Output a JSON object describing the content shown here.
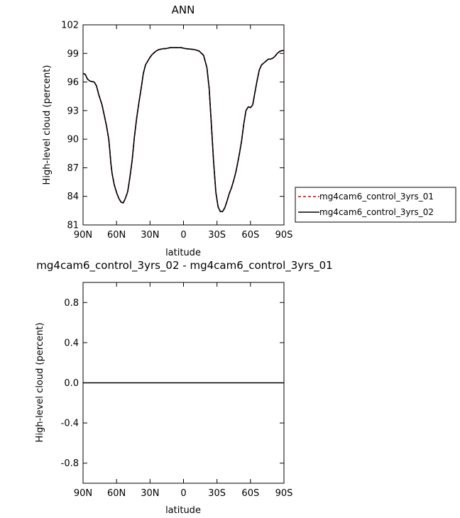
{
  "chart_data": [
    {
      "type": "line",
      "title": "ANN",
      "xlabel": "latitude",
      "ylabel": "High-level cloud (percent)",
      "xlim": [
        90,
        -90
      ],
      "ylim": [
        81,
        102
      ],
      "x_ticks": [
        90,
        60,
        30,
        0,
        -30,
        -60,
        -90
      ],
      "x_tick_labels": [
        "90N",
        "60N",
        "30N",
        "0",
        "30S",
        "60S",
        "90S"
      ],
      "y_ticks": [
        81,
        84,
        87,
        90,
        93,
        96,
        99,
        102
      ],
      "y_tick_labels": [
        "81",
        "84",
        "87",
        "90",
        "93",
        "96",
        "99",
        "102"
      ],
      "legend_position": "right",
      "series": [
        {
          "name": "mg4cam6_control_3yrs_01",
          "color": "#cc0000",
          "dash": "dashed",
          "x": [
            90,
            88,
            86,
            84,
            80,
            78,
            76,
            73,
            71,
            69,
            67,
            66,
            65,
            64,
            62,
            60,
            58,
            56,
            54,
            52,
            50,
            48,
            46,
            44,
            42,
            40,
            38,
            36,
            34,
            32,
            30,
            28,
            26,
            24,
            22,
            20,
            18,
            16,
            14,
            12,
            10,
            6,
            2,
            -2,
            -6,
            -10,
            -14,
            -18,
            -21,
            -23,
            -25,
            -27,
            -29,
            -31,
            -33,
            -35,
            -37,
            -39,
            -41,
            -43,
            -45,
            -47,
            -48,
            -50,
            -52,
            -54,
            -56,
            -58,
            -60,
            -62,
            -64,
            -66,
            -68,
            -70,
            -72,
            -74,
            -76,
            -78,
            -80,
            -82,
            -84,
            -86,
            -88,
            -90
          ],
          "y": [
            96.9,
            96.8,
            96.3,
            96.1,
            96.0,
            95.6,
            94.7,
            93.6,
            92.5,
            91.4,
            90.0,
            88.8,
            87.4,
            86.4,
            85.2,
            84.4,
            83.8,
            83.4,
            83.3,
            83.8,
            84.5,
            86.0,
            87.8,
            90.2,
            92.2,
            93.8,
            95.3,
            96.9,
            97.8,
            98.2,
            98.6,
            98.9,
            99.1,
            99.3,
            99.4,
            99.45,
            99.5,
            99.5,
            99.55,
            99.6,
            99.6,
            99.6,
            99.6,
            99.5,
            99.45,
            99.4,
            99.25,
            98.8,
            97.5,
            95.3,
            91.5,
            87.5,
            84.4,
            82.9,
            82.4,
            82.4,
            82.8,
            83.5,
            84.3,
            84.9,
            85.7,
            86.6,
            87.2,
            88.4,
            89.8,
            91.6,
            93.0,
            93.4,
            93.3,
            93.6,
            94.9,
            96.2,
            97.3,
            97.8,
            98.0,
            98.2,
            98.4,
            98.4,
            98.5,
            98.7,
            99.0,
            99.2,
            99.3,
            99.3
          ]
        },
        {
          "name": "mg4cam6_control_3yrs_02",
          "color": "#000000",
          "dash": "solid",
          "x": [
            90,
            88,
            86,
            84,
            80,
            78,
            76,
            73,
            71,
            69,
            67,
            66,
            65,
            64,
            62,
            60,
            58,
            56,
            54,
            52,
            50,
            48,
            46,
            44,
            42,
            40,
            38,
            36,
            34,
            32,
            30,
            28,
            26,
            24,
            22,
            20,
            18,
            16,
            14,
            12,
            10,
            6,
            2,
            -2,
            -6,
            -10,
            -14,
            -18,
            -21,
            -23,
            -25,
            -27,
            -29,
            -31,
            -33,
            -35,
            -37,
            -39,
            -41,
            -43,
            -45,
            -47,
            -48,
            -50,
            -52,
            -54,
            -56,
            -58,
            -60,
            -62,
            -64,
            -66,
            -68,
            -70,
            -72,
            -74,
            -76,
            -78,
            -80,
            -82,
            -84,
            -86,
            -88,
            -90
          ],
          "y": [
            96.9,
            96.8,
            96.3,
            96.1,
            96.0,
            95.6,
            94.7,
            93.6,
            92.5,
            91.4,
            90.0,
            88.8,
            87.4,
            86.4,
            85.2,
            84.4,
            83.8,
            83.4,
            83.3,
            83.8,
            84.5,
            86.0,
            87.8,
            90.2,
            92.2,
            93.8,
            95.3,
            96.9,
            97.8,
            98.2,
            98.6,
            98.9,
            99.1,
            99.3,
            99.4,
            99.45,
            99.5,
            99.5,
            99.55,
            99.6,
            99.6,
            99.6,
            99.6,
            99.5,
            99.45,
            99.4,
            99.25,
            98.8,
            97.5,
            95.3,
            91.5,
            87.5,
            84.4,
            82.9,
            82.4,
            82.4,
            82.8,
            83.5,
            84.3,
            84.9,
            85.7,
            86.6,
            87.2,
            88.4,
            89.8,
            91.6,
            93.0,
            93.4,
            93.3,
            93.6,
            94.9,
            96.2,
            97.3,
            97.8,
            98.0,
            98.2,
            98.4,
            98.4,
            98.5,
            98.7,
            99.0,
            99.2,
            99.3,
            99.3
          ]
        }
      ]
    },
    {
      "type": "line",
      "title": "mg4cam6_control_3yrs_02 - mg4cam6_control_3yrs_01",
      "xlabel": "latitude",
      "ylabel": "High-level cloud (percent)",
      "xlim": [
        90,
        -90
      ],
      "ylim": [
        -1,
        1
      ],
      "x_ticks": [
        90,
        60,
        30,
        0,
        -30,
        -60,
        -90
      ],
      "x_tick_labels": [
        "90N",
        "60N",
        "30N",
        "0",
        "30S",
        "60S",
        "90S"
      ],
      "y_ticks": [
        -0.8,
        -0.4,
        0.0,
        0.4,
        0.8
      ],
      "y_tick_labels": [
        "-0.8",
        "-0.4",
        "0.0",
        "0.4",
        "0.8"
      ],
      "series": [
        {
          "color": "#000000",
          "dash": "solid",
          "x": [
            90,
            -90
          ],
          "y": [
            0,
            0
          ]
        }
      ]
    }
  ]
}
